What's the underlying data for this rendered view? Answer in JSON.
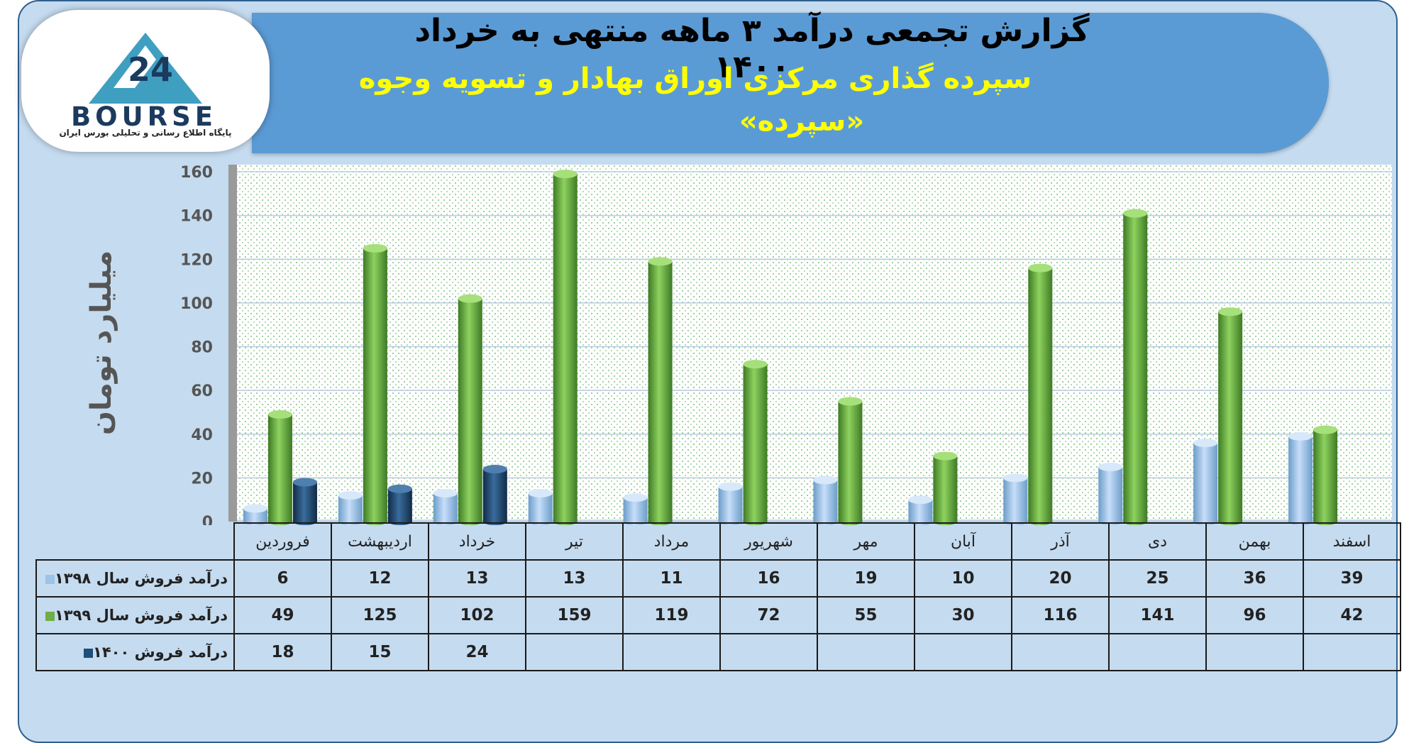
{
  "title": "گزارش تجمعی درآمد ۳ ماهه منتهی به خرداد ۱۴۰۰",
  "subtitle": "سپرده گذاری مرکزی اوراق بهادار و تسویه وجوه",
  "subtitle2": "«سپرده»",
  "logo": {
    "text": "BOURSE",
    "sub": "پایگاه اطلاع رسانی و تحلیلی بورس ایران",
    "icon": "24-triangle-logo-icon"
  },
  "colors": {
    "header": "#5b9bd5",
    "panel": "#c5dbef",
    "subtitle": "#ffff00",
    "series1": "#9dc3e6",
    "series2": "#70ad47",
    "series3": "#1f4e79"
  },
  "chart_data": {
    "type": "bar",
    "ylabel": "میلیارد تومان",
    "ylim": [
      0,
      160
    ],
    "yticks": [
      0,
      20,
      40,
      60,
      80,
      100,
      120,
      140,
      160
    ],
    "grid": true,
    "categories": [
      "فروردین",
      "اردیبهشت",
      "خرداد",
      "تیر",
      "مرداد",
      "شهریور",
      "مهر",
      "آبان",
      "آذر",
      "دی",
      "بهمن",
      "اسفند"
    ],
    "series": [
      {
        "name": "درآمد فروش سال ۱۳۹۸",
        "color": "#9dc3e6",
        "values": [
          6,
          12,
          13,
          13,
          11,
          16,
          19,
          10,
          20,
          25,
          36,
          39
        ]
      },
      {
        "name": "درآمد فروش سال ۱۳۹۹",
        "color": "#70ad47",
        "values": [
          49,
          125,
          102,
          159,
          119,
          72,
          55,
          30,
          116,
          141,
          96,
          42
        ]
      },
      {
        "name": "درآمد فروش ۱۴۰۰",
        "color": "#1f4e79",
        "values": [
          18,
          15,
          24,
          null,
          null,
          null,
          null,
          null,
          null,
          null,
          null,
          null
        ]
      }
    ]
  }
}
